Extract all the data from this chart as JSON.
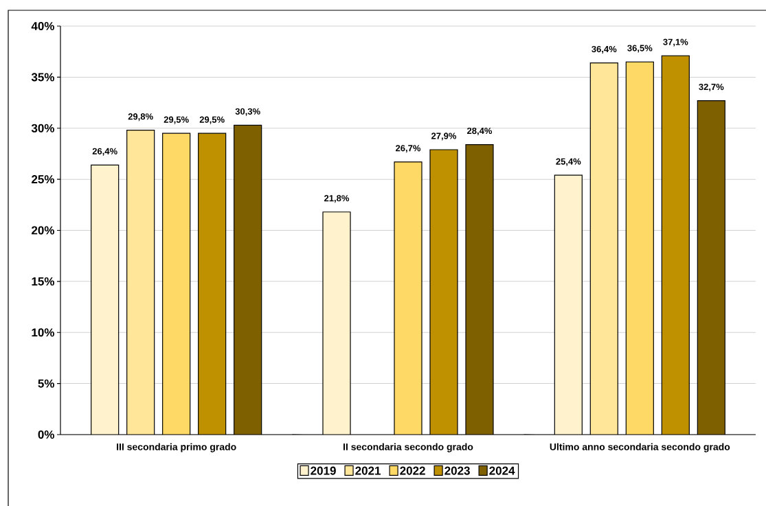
{
  "chart_data": {
    "type": "bar",
    "categories": [
      "III secondaria primo grado",
      "II secondaria secondo grado",
      "Ultimo anno secondaria secondo grado"
    ],
    "series": [
      {
        "name": "2019",
        "color": "#fff2cc",
        "values": [
          26.4,
          21.8,
          25.4
        ],
        "value_labels": [
          "26,4%",
          "21,8%",
          "25,4%"
        ]
      },
      {
        "name": "2021",
        "color": "#ffe699",
        "values": [
          29.8,
          null,
          36.4
        ],
        "value_labels": [
          "29,8%",
          null,
          "36,4%"
        ]
      },
      {
        "name": "2022",
        "color": "#ffd966",
        "values": [
          29.5,
          26.7,
          36.5
        ],
        "value_labels": [
          "29,5%",
          "26,7%",
          "36,5%"
        ]
      },
      {
        "name": "2023",
        "color": "#bf9000",
        "values": [
          29.5,
          27.9,
          37.1
        ],
        "value_labels": [
          "29,5%",
          "27,9%",
          "37,1%"
        ]
      },
      {
        "name": "2024",
        "color": "#7f6000",
        "values": [
          30.3,
          28.4,
          32.7
        ],
        "value_labels": [
          "30,3%",
          "28,4%",
          "32,7%"
        ]
      }
    ],
    "ylim": [
      0,
      40
    ],
    "yticks": [
      {
        "value": 0,
        "label": "0%"
      },
      {
        "value": 5,
        "label": "5%"
      },
      {
        "value": 10,
        "label": "10%"
      },
      {
        "value": 15,
        "label": "15%"
      },
      {
        "value": 20,
        "label": "20%"
      },
      {
        "value": 25,
        "label": "25%"
      },
      {
        "value": 30,
        "label": "30%"
      },
      {
        "value": 35,
        "label": "35%"
      },
      {
        "value": 40,
        "label": "40%"
      }
    ],
    "grid": "y",
    "legend": "bottom"
  }
}
